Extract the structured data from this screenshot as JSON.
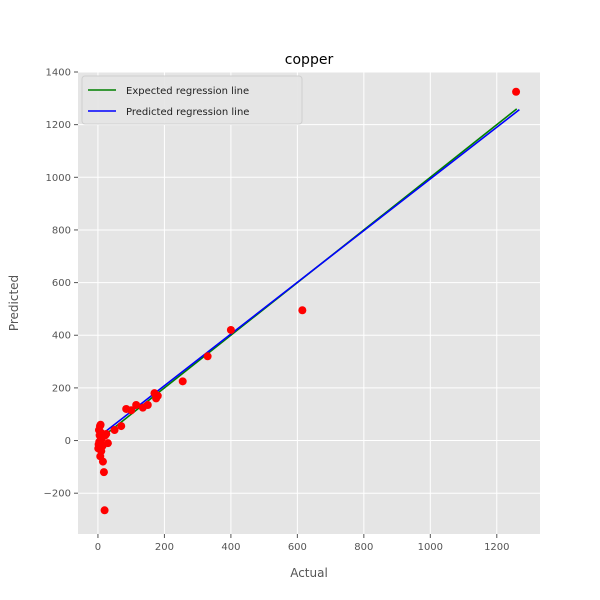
{
  "chart_data": {
    "type": "scatter",
    "title": "copper",
    "xlabel": "Actual",
    "ylabel": "Predicted",
    "xlim": [
      -60,
      1330
    ],
    "ylim": [
      -355,
      1400
    ],
    "xticks": [
      0,
      200,
      400,
      600,
      800,
      1000,
      1200
    ],
    "yticks": [
      -200,
      0,
      200,
      400,
      600,
      800,
      1000,
      1200,
      1400
    ],
    "grid": true,
    "legend_position": "top-left",
    "colors": {
      "background": "#e5e5e5",
      "grid": "#ffffff",
      "points": "#ff0000",
      "expected": "#008000",
      "predicted": "#0000ff"
    },
    "series": [
      {
        "name": "Expected regression line",
        "type": "line",
        "x": [
          0,
          1260
        ],
        "y": [
          0,
          1260
        ]
      },
      {
        "name": "Predicted regression line",
        "type": "line",
        "x": [
          0,
          1268
        ],
        "y": [
          12,
          1257
        ]
      },
      {
        "type": "scatter",
        "x": [
          1,
          2,
          3,
          4,
          5,
          6,
          7,
          8,
          9,
          10,
          10,
          12,
          14,
          15,
          18,
          20,
          22,
          25,
          30,
          50,
          70,
          85,
          100,
          115,
          135,
          150,
          170,
          175,
          180,
          255,
          330,
          400,
          615,
          1258
        ],
        "y": [
          -30,
          -15,
          40,
          -5,
          20,
          55,
          -60,
          60,
          30,
          -40,
          5,
          10,
          -20,
          -80,
          -120,
          -265,
          20,
          25,
          -10,
          40,
          55,
          120,
          115,
          135,
          125,
          135,
          180,
          160,
          170,
          225,
          320,
          420,
          495,
          1325
        ]
      }
    ]
  }
}
